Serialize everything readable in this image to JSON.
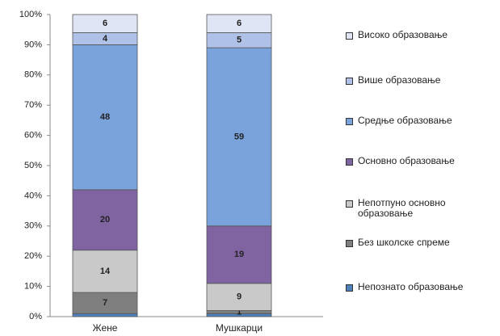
{
  "chart_data": {
    "type": "stacked_bar",
    "categories": [
      "Жене",
      "Мушкарци"
    ],
    "series": [
      {
        "name": "Непознато образовање",
        "color": "#4f81bd",
        "values": [
          1,
          1
        ],
        "value_labels": [
          null,
          null
        ]
      },
      {
        "name": "Без школске спреме",
        "color": "#7f7f7f",
        "values": [
          7,
          1
        ]
      },
      {
        "name": "Непотпуно основно образовање",
        "color": "#c9c9c9",
        "values": [
          14,
          9
        ]
      },
      {
        "name": "Основно образовање",
        "color": "#8064a2",
        "values": [
          20,
          19
        ]
      },
      {
        "name": "Средње образовање",
        "color": "#7aa3dc",
        "values": [
          48,
          59
        ]
      },
      {
        "name": "Више образовање",
        "color": "#b0c1e8",
        "values": [
          4,
          5
        ]
      },
      {
        "name": "Високо образовање",
        "color": "#dfe5f4",
        "values": [
          6,
          6
        ]
      }
    ],
    "ylim": [
      0,
      100
    ],
    "yticks": [
      {
        "value": 0,
        "label": "0%"
      },
      {
        "value": 10,
        "label": "10%"
      },
      {
        "value": 20,
        "label": "20%"
      },
      {
        "value": 30,
        "label": "30%"
      },
      {
        "value": 40,
        "label": "40%"
      },
      {
        "value": 50,
        "label": "50%"
      },
      {
        "value": 60,
        "label": "60%"
      },
      {
        "value": 70,
        "label": "70%"
      },
      {
        "value": 80,
        "label": "80%"
      },
      {
        "value": 90,
        "label": "90%"
      },
      {
        "value": 100,
        "label": "100%"
      }
    ]
  }
}
